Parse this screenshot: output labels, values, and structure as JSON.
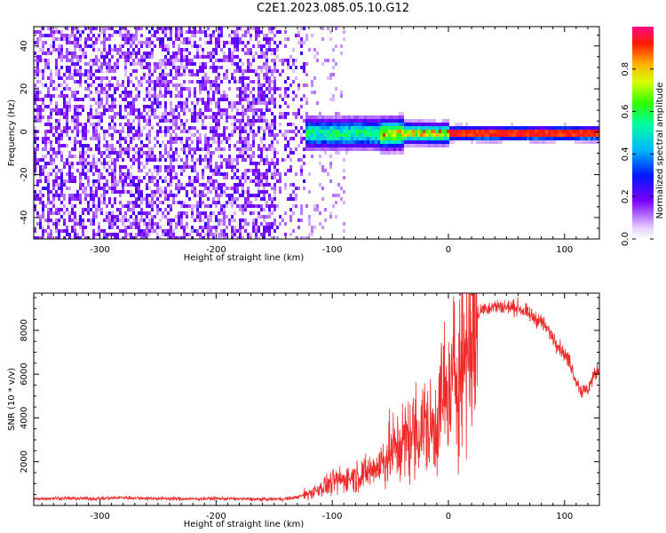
{
  "title": "C2E1.2023.085.05.10.G12",
  "colors": {
    "snr_line": "#ee2a2a",
    "axis": "#000000"
  },
  "chart_data": [
    {
      "type": "heatmap",
      "title": "C2E1.2023.085.05.10.G12",
      "xlabel": "Height of straight line (km)",
      "ylabel": "Frequency (Hz)",
      "xlim": [
        -357,
        130
      ],
      "ylim": [
        -50,
        49
      ],
      "x_ticks": [
        -300,
        -200,
        -100,
        0,
        100
      ],
      "y_ticks": [
        -40,
        -20,
        0,
        20,
        40
      ],
      "colorbar": {
        "label": "Normalized spectral amplitude",
        "range": [
          0,
          1
        ],
        "ticks": [
          "0.0",
          "0.2",
          "0.4",
          "0.6",
          "0.8"
        ],
        "colormap": "rainbow (white → violet → blue → cyan → green → yellow → red → magenta)"
      },
      "grid": false
    },
    {
      "type": "line",
      "xlabel": "Height of straight line (km)",
      "ylabel": "SNR (10 * v/v)",
      "xlim": [
        -357,
        130
      ],
      "ylim": [
        0,
        9700
      ],
      "x_ticks": [
        -300,
        -200,
        -100,
        0,
        100
      ],
      "y_ticks": [
        2000,
        4000,
        6000,
        8000
      ],
      "grid": false,
      "series": [
        {
          "x": [
            -357,
            -340,
            -320,
            -300,
            -280,
            -260,
            -240,
            -220,
            -200,
            -180,
            -160,
            -140,
            -130,
            -120,
            -110,
            -100,
            -90,
            -80,
            -70,
            -60,
            -50,
            -40,
            -30,
            -20,
            -15,
            -10,
            -5,
            0,
            5,
            10,
            15,
            20,
            25,
            30,
            40,
            50,
            60,
            70,
            80,
            90,
            100,
            105,
            110,
            115,
            120,
            125,
            130
          ],
          "y": [
            300,
            330,
            320,
            310,
            360,
            330,
            310,
            300,
            320,
            300,
            280,
            300,
            380,
            550,
            800,
            1050,
            1200,
            1350,
            1500,
            1800,
            2400,
            2800,
            3300,
            3600,
            3400,
            3700,
            5200,
            4600,
            6000,
            6400,
            7200,
            8000,
            8700,
            9000,
            9100,
            9050,
            9050,
            8700,
            8400,
            7700,
            6900,
            6500,
            5700,
            5200,
            5300,
            5900,
            6300
          ]
        }
      ]
    }
  ]
}
